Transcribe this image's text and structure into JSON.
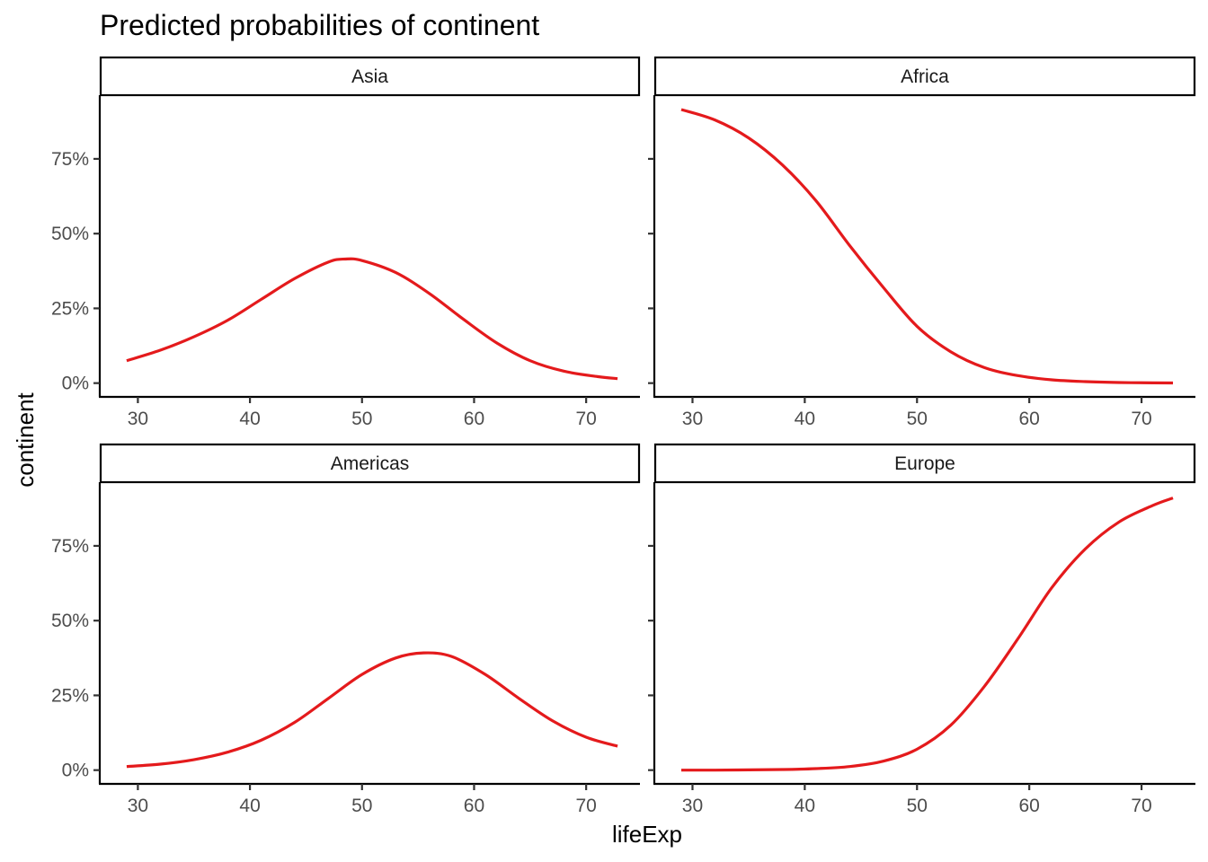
{
  "chart_data": {
    "type": "line",
    "title": "Predicted probabilities of continent",
    "xlabel": "lifeExp",
    "ylabel": "continent",
    "xlim": [
      26.6,
      74.8
    ],
    "ylim": [
      -0.046,
      0.963
    ],
    "x_ticks": [
      30,
      40,
      50,
      60,
      70
    ],
    "x_tick_labels": [
      "30",
      "40",
      "50",
      "60",
      "70"
    ],
    "y_ticks": [
      0,
      0.25,
      0.5,
      0.75
    ],
    "y_tick_labels": [
      "0%",
      "25%",
      "50%",
      "75%"
    ],
    "grid": false,
    "legend": "none",
    "line_color": "#e41a1c",
    "layout": "facet 2x2",
    "panels": [
      {
        "name": "Asia",
        "x": [
          29,
          32,
          35,
          38,
          41,
          44,
          47,
          48.5,
          50,
          53,
          56,
          59,
          62,
          65,
          68,
          71,
          72.8
        ],
        "values": [
          0.075,
          0.11,
          0.155,
          0.21,
          0.28,
          0.35,
          0.405,
          0.415,
          0.41,
          0.37,
          0.3,
          0.215,
          0.135,
          0.075,
          0.04,
          0.022,
          0.015
        ]
      },
      {
        "name": "Africa",
        "x": [
          29,
          32,
          35,
          38,
          41,
          44,
          47,
          50,
          53,
          56,
          59,
          62,
          65,
          68,
          71,
          72.8
        ],
        "values": [
          0.915,
          0.88,
          0.82,
          0.73,
          0.61,
          0.46,
          0.32,
          0.19,
          0.105,
          0.052,
          0.025,
          0.011,
          0.005,
          0.002,
          0.001,
          0.0005
        ]
      },
      {
        "name": "Americas",
        "x": [
          29,
          32,
          35,
          38,
          41,
          44,
          47,
          50,
          53,
          55.5,
          58,
          61,
          64,
          67,
          70,
          72.8
        ],
        "values": [
          0.012,
          0.02,
          0.035,
          0.06,
          0.1,
          0.16,
          0.24,
          0.32,
          0.375,
          0.392,
          0.38,
          0.32,
          0.24,
          0.165,
          0.11,
          0.08
        ]
      },
      {
        "name": "Europe",
        "x": [
          29,
          32,
          35,
          38,
          41,
          44,
          47,
          50,
          53,
          56,
          59,
          62,
          65,
          68,
          71,
          72.8
        ],
        "values": [
          0.0,
          0.0,
          0.001,
          0.002,
          0.005,
          0.012,
          0.03,
          0.07,
          0.15,
          0.28,
          0.44,
          0.61,
          0.74,
          0.83,
          0.885,
          0.91
        ]
      }
    ]
  }
}
